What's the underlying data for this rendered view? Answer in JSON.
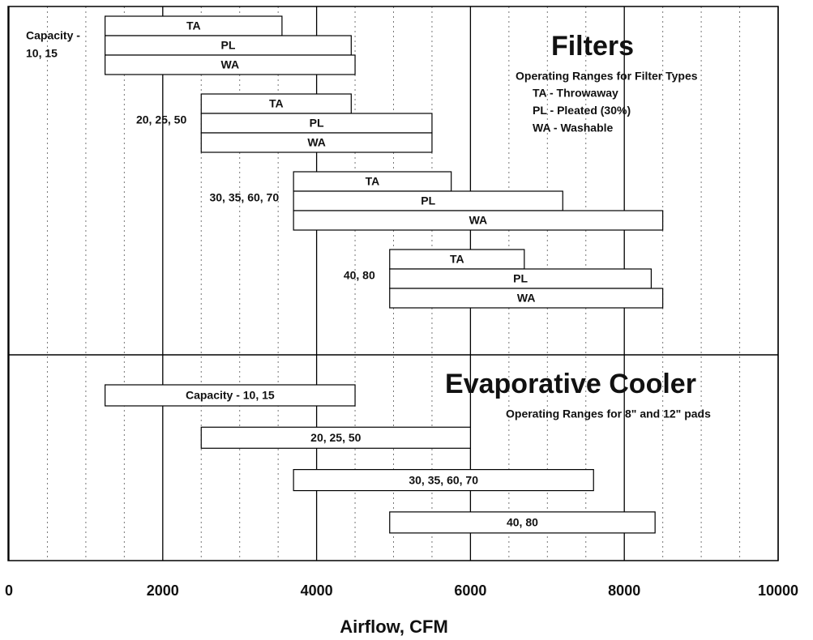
{
  "chart_data": {
    "type": "rangebar",
    "xlabel": "Airflow, CFM",
    "xlim": [
      0,
      10000
    ],
    "xticks": [
      0,
      2000,
      4000,
      6000,
      8000,
      10000
    ],
    "xminorticks": [
      500,
      1000,
      1500,
      2500,
      3000,
      3500,
      4500,
      5000,
      5500,
      6500,
      7000,
      7500,
      8500,
      9000,
      9500
    ],
    "grid": true,
    "minor_grid": true,
    "bar_color": "#ffffff",
    "edge_color": "#000000",
    "panels": [
      {
        "title": "Filters",
        "subtitle": "Operating Ranges for Filter Types",
        "legend": [
          "TA - Throwaway",
          "PL - Pleated (30%)",
          "WA - Washable"
        ],
        "groups": [
          {
            "label": [
              "Capacity -",
              "10, 15"
            ],
            "bars": [
              {
                "label": "TA",
                "values": [
                  1250,
                  3550
                ]
              },
              {
                "label": "PL",
                "values": [
                  1250,
                  4450
                ]
              },
              {
                "label": "WA",
                "values": [
                  1250,
                  4500
                ]
              }
            ]
          },
          {
            "label": [
              "20, 25, 50"
            ],
            "bars": [
              {
                "label": "TA",
                "values": [
                  2500,
                  4450
                ]
              },
              {
                "label": "PL",
                "values": [
                  2500,
                  5500
                ]
              },
              {
                "label": "WA",
                "values": [
                  2500,
                  5500
                ]
              }
            ]
          },
          {
            "label": [
              "30, 35, 60, 70"
            ],
            "bars": [
              {
                "label": "TA",
                "values": [
                  3700,
                  5750
                ]
              },
              {
                "label": "PL",
                "values": [
                  3700,
                  7200
                ]
              },
              {
                "label": "WA",
                "values": [
                  3700,
                  8500
                ]
              }
            ]
          },
          {
            "label": [
              "40, 80"
            ],
            "bars": [
              {
                "label": "TA",
                "values": [
                  4950,
                  6700
                ]
              },
              {
                "label": "PL",
                "values": [
                  4950,
                  8350
                ]
              },
              {
                "label": "WA",
                "values": [
                  4950,
                  8500
                ]
              }
            ]
          }
        ]
      },
      {
        "title": "Evaporative Cooler",
        "subtitle": "Operating Ranges for 8\" and 12\" pads",
        "bars": [
          {
            "label": "Capacity - 10, 15",
            "values": [
              1250,
              4500
            ]
          },
          {
            "label": "20, 25, 50",
            "values": [
              2500,
              6000
            ]
          },
          {
            "label": "30, 35, 60, 70",
            "values": [
              3700,
              7600
            ]
          },
          {
            "label": "40, 80",
            "values": [
              4950,
              8400
            ]
          }
        ]
      }
    ]
  }
}
